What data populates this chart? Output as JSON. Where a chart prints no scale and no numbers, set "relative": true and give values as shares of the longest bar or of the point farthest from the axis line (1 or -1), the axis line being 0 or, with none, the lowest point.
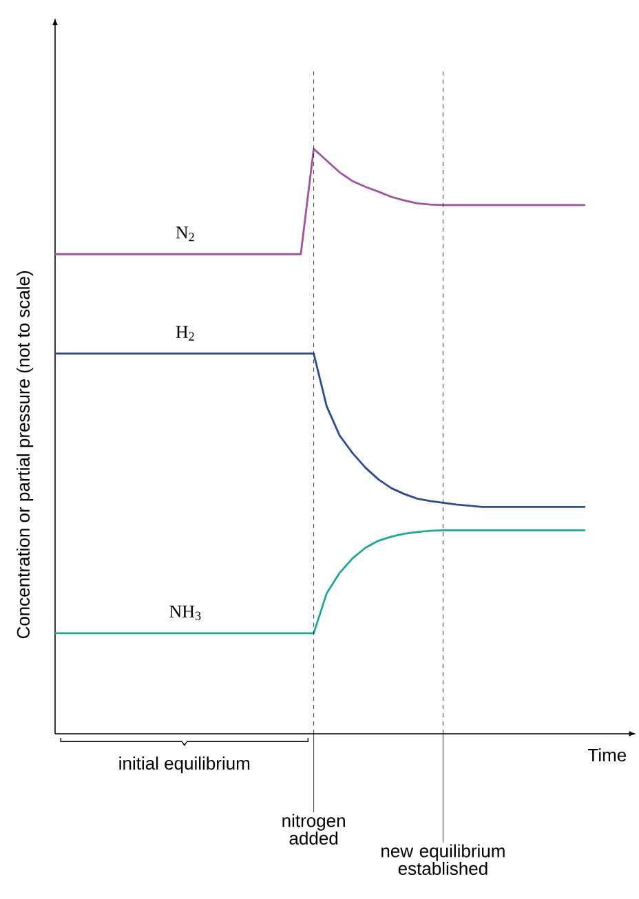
{
  "chart_data": {
    "type": "line",
    "relative": true,
    "ylabel": "Concentration or partial pressure (not to scale)",
    "xlabel": "Time",
    "categories": [
      null,
      null,
      null,
      null,
      null,
      null,
      null,
      null,
      null,
      null,
      null,
      null,
      null,
      null,
      null,
      null,
      null,
      null,
      null,
      null,
      null,
      null,
      null,
      null,
      null,
      null,
      null,
      null,
      null,
      null,
      null,
      null,
      null,
      null,
      null,
      null,
      null,
      null,
      null,
      null,
      null,
      null
    ],
    "tick_labels": false,
    "marker": "none",
    "line_style": "solid",
    "series": [
      {
        "name": "N$_{2}$",
        "color": "#a3519e",
        "values": [
          0.82,
          0.82,
          0.82,
          0.82,
          0.82,
          0.82,
          0.82,
          0.82,
          0.82,
          0.82,
          0.82,
          0.82,
          0.82,
          0.82,
          0.82,
          0.82,
          0.82,
          0.82,
          0.82,
          0.82,
          1,
          0.98,
          0.96,
          0.945,
          0.935,
          0.927,
          0.918,
          0.912,
          0.907,
          0.905,
          0.904,
          0.904,
          0.904,
          0.904,
          0.904,
          0.904,
          0.904,
          0.904,
          0.904,
          0.904,
          0.904,
          0.904
        ]
      },
      {
        "name": "H$_{2}$",
        "color": "#2b4a9c",
        "values": [
          0.65,
          0.65,
          0.65,
          0.65,
          0.65,
          0.65,
          0.65,
          0.65,
          0.65,
          0.65,
          0.65,
          0.65,
          0.65,
          0.65,
          0.65,
          0.65,
          0.65,
          0.65,
          0.65,
          0.65,
          0.65,
          0.56,
          0.51,
          0.48,
          0.455,
          0.435,
          0.42,
          0.41,
          0.402,
          0.398,
          0.395,
          0.392,
          0.39,
          0.388,
          0.388,
          0.388,
          0.388,
          0.388,
          0.388,
          0.388,
          0.388,
          0.388
        ]
      },
      {
        "name": "NH$_{3}$",
        "color": "#1aa89c",
        "values": [
          0.172,
          0.172,
          0.172,
          0.172,
          0.172,
          0.172,
          0.172,
          0.172,
          0.172,
          0.172,
          0.172,
          0.172,
          0.172,
          0.172,
          0.172,
          0.172,
          0.172,
          0.172,
          0.172,
          0.172,
          0.172,
          0.24,
          0.275,
          0.3,
          0.318,
          0.33,
          0.337,
          0.342,
          0.345,
          0.347,
          0.348,
          0.348,
          0.348,
          0.348,
          0.348,
          0.348,
          0.348,
          0.348,
          0.348,
          0.348,
          0.348,
          0.348
        ]
      }
    ],
    "annotations": [
      "initial equilibrium",
      "nitrogen added",
      "new equilibrium established"
    ]
  }
}
